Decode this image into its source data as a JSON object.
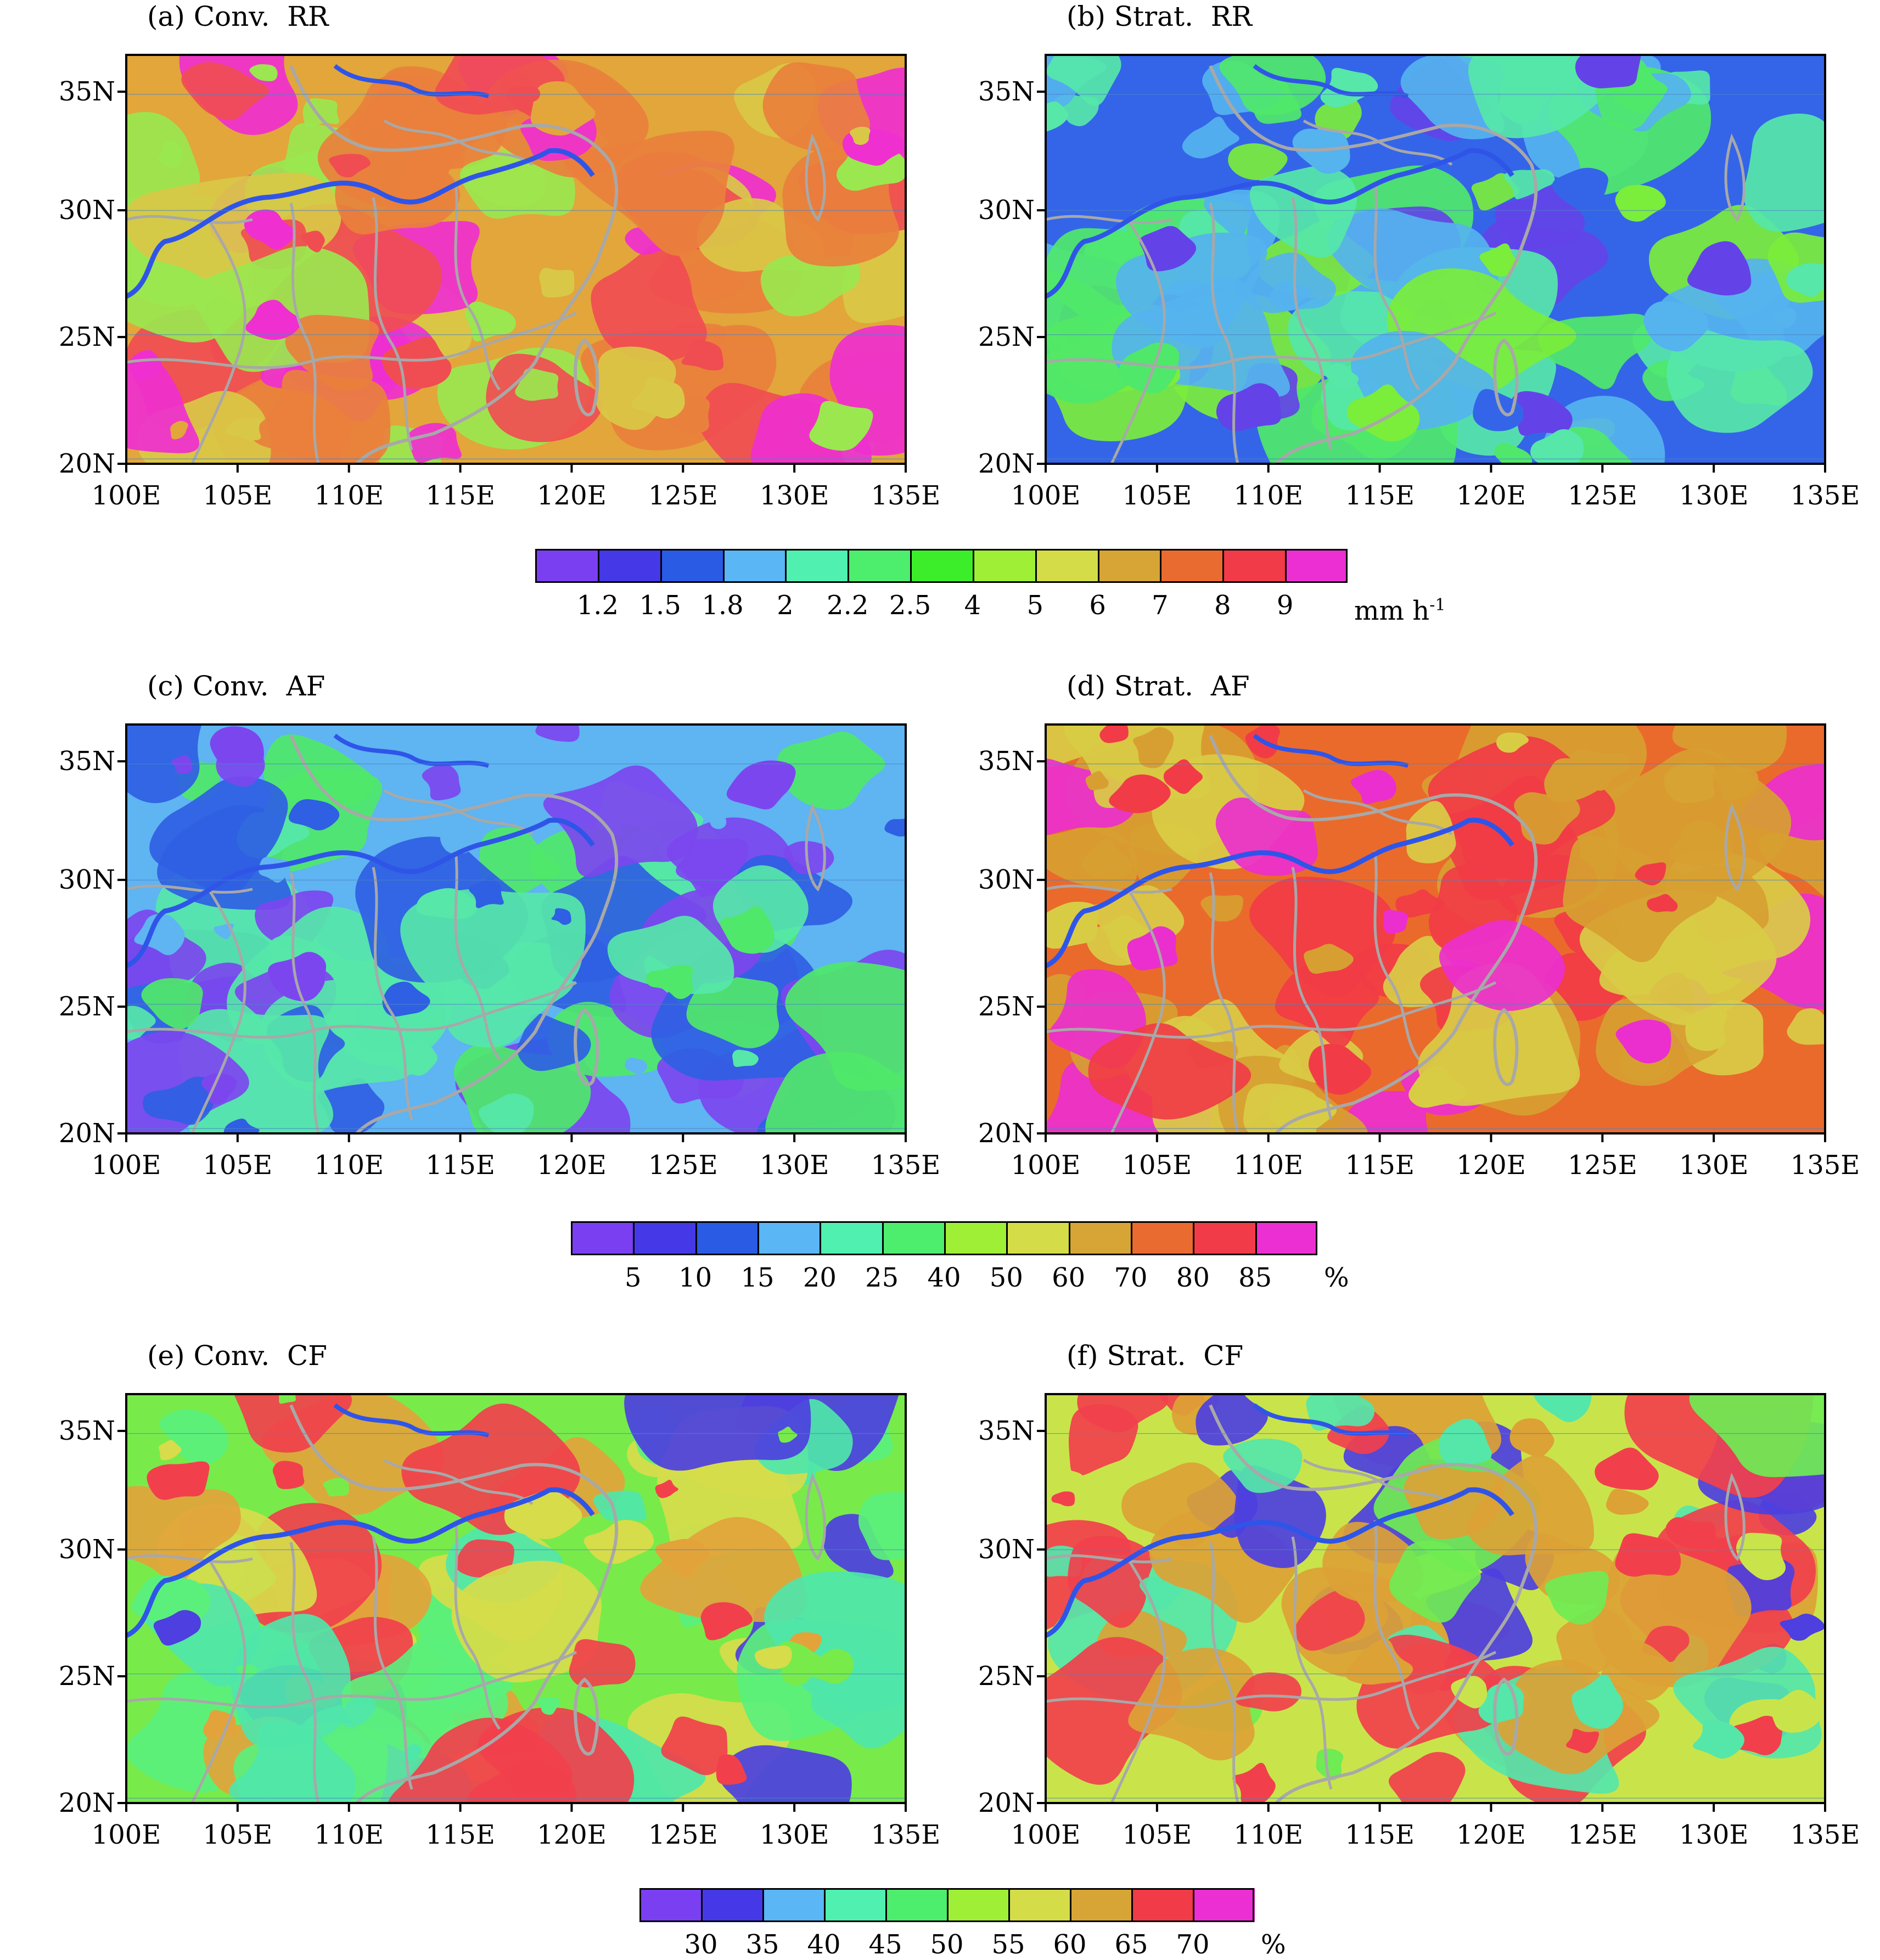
{
  "figure": {
    "lat_ticks": [
      "35N",
      "30N",
      "25N",
      "20N"
    ],
    "lon_ticks": [
      "100E",
      "105E",
      "110E",
      "115E",
      "120E",
      "125E",
      "130E",
      "135E"
    ],
    "lat_range_deg": [
      20,
      36
    ],
    "lon_range_deg": [
      100,
      135
    ]
  },
  "panels": [
    {
      "id": "a",
      "title": "(a) Conv.  RR",
      "field": "convective rain rate",
      "palette": [
        "#e2a63b",
        "#e9803c",
        "#f04d52",
        "#ef2fd0",
        "#d9c847",
        "#9ae74f"
      ]
    },
    {
      "id": "b",
      "title": "(b) Strat.  RR",
      "field": "stratiform rain rate",
      "palette": [
        "#3465e8",
        "#55b3ee",
        "#56e7a9",
        "#4fe86a",
        "#7bed3b",
        "#6343e8"
      ]
    },
    {
      "id": "c",
      "title": "(c) Conv.  AF",
      "field": "convective area fraction",
      "palette": [
        "#5fb4f2",
        "#56e7a9",
        "#4fe86a",
        "#2f5fe3",
        "#7c46ef"
      ]
    },
    {
      "id": "d",
      "title": "(d) Strat.  AF",
      "field": "stratiform area fraction",
      "palette": [
        "#ea6a2c",
        "#f13c47",
        "#d79f31",
        "#eb2fce",
        "#d9cc45"
      ]
    },
    {
      "id": "e",
      "title": "(e) Conv.  CF",
      "field": "convective contribution fraction",
      "palette": [
        "#78eb4a",
        "#5bf07c",
        "#4fe6aa",
        "#d7dc4a",
        "#e3a33b",
        "#4d3fe0",
        "#f1404c"
      ]
    },
    {
      "id": "f",
      "title": "(f) Strat.  CF",
      "field": "stratiform contribution fraction",
      "palette": [
        "#c9e44a",
        "#6feb53",
        "#dca235",
        "#55e6aa",
        "#f1404c",
        "#4d3fe0"
      ]
    }
  ],
  "colorbars": [
    {
      "id": "rr",
      "colors": [
        "#7b3ff2",
        "#4538e6",
        "#2a5be4",
        "#5ab6f5",
        "#4ff0b0",
        "#4ded6e",
        "#3cee2a",
        "#9eef35",
        "#d4dd48",
        "#d7a535",
        "#ea6b2f",
        "#f13b48",
        "#ec2fd3"
      ],
      "ticks": [
        "1.2",
        "1.5",
        "1.8",
        "2",
        "2.2",
        "2.5",
        "4",
        "5",
        "6",
        "7",
        "8",
        "9"
      ],
      "unit": "mm h",
      "unit_sup": "-1"
    },
    {
      "id": "af",
      "colors": [
        "#7b3ff2",
        "#4538e6",
        "#2a5be4",
        "#5ab6f5",
        "#4ff0b0",
        "#4ded6e",
        "#9eef35",
        "#d4dd48",
        "#d7a535",
        "#ea6b2f",
        "#f13b48",
        "#ec2fd3"
      ],
      "ticks": [
        "5",
        "10",
        "15",
        "20",
        "25",
        "40",
        "50",
        "60",
        "70",
        "80",
        "85"
      ],
      "unit": "%"
    },
    {
      "id": "cf",
      "colors": [
        "#7b3ff2",
        "#4538e6",
        "#5ab6f5",
        "#4ff0b0",
        "#4ded6e",
        "#9eef35",
        "#d4dd48",
        "#d7a535",
        "#f13b48",
        "#ec2fd3"
      ],
      "ticks": [
        "30",
        "35",
        "40",
        "45",
        "50",
        "55",
        "60",
        "65",
        "70"
      ],
      "unit": "%"
    }
  ]
}
